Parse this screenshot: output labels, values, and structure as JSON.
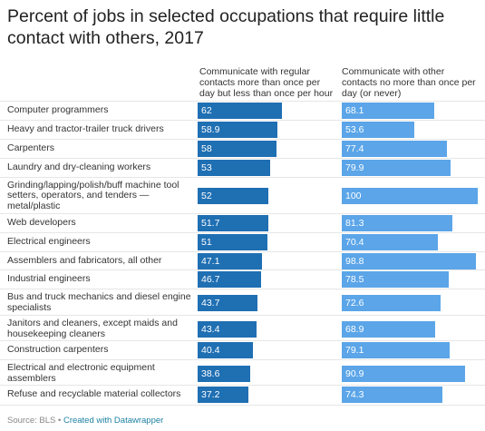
{
  "chart_data": {
    "type": "bar",
    "title": "Percent of jobs in selected occupations that require little contact with others, 2017",
    "xlim": [
      0,
      100
    ],
    "categories": [
      "Computer programmers",
      "Heavy and tractor-trailer truck drivers",
      "Carpenters",
      "Laundry and dry-cleaning workers",
      "Grinding/lapping/polish/buff machine tool setters, operators, and tenders — metal/plastic",
      "Web developers",
      "Electrical engineers",
      "Assemblers and fabricators, all other",
      "Industrial engineers",
      "Bus and truck mechanics and diesel engine specialists",
      "Janitors and cleaners, except maids and housekeeping cleaners",
      "Construction carpenters",
      "Electrical and electronic equipment assemblers",
      "Refuse and recyclable material collectors"
    ],
    "series": [
      {
        "name": "Communicate with regular contacts more than once per day but less than once per hour",
        "color": "#1f6fb3",
        "values": [
          "62",
          "58.9",
          "58",
          "53",
          "52",
          "51.7",
          "51",
          "47.1",
          "46.7",
          "43.7",
          "43.4",
          "40.4",
          "38.6",
          "37.2"
        ]
      },
      {
        "name": "Communicate with other contacts no more than once per day (or never)",
        "color": "#5ba5e8",
        "values": [
          "68.1",
          "53.6",
          "77.4",
          "79.9",
          "100",
          "81.3",
          "70.4",
          "98.8",
          "78.5",
          "72.6",
          "68.9",
          "79.1",
          "90.9",
          "74.3"
        ]
      }
    ]
  },
  "footer": {
    "source": "Source: BLS",
    "separator": " • ",
    "credit": "Created with Datawrapper"
  }
}
